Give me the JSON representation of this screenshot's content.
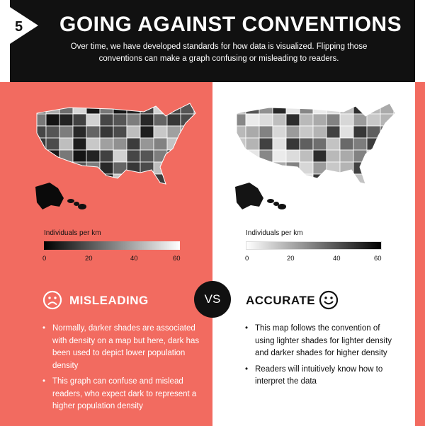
{
  "header": {
    "step_number": "5",
    "title": "GOING AGAINST CONVENTIONS",
    "subtitle": "Over time, we have developed standards for how data is visualized. Flipping those conventions can make a graph confusing or misleading to readers."
  },
  "colors": {
    "header_bg": "#111111",
    "misleading_bg": "#f26b60",
    "accurate_bg": "#ffffff"
  },
  "left_panel": {
    "legend_title": "Individuals per km",
    "ticks": [
      "0",
      "20",
      "40",
      "60"
    ],
    "gradient": "dark-to-light",
    "heading": "MISLEADING",
    "face_icon": "sad-face-icon",
    "bullets": [
      "Normally, darker shades are associated with density on a map but here, dark has been used to depict lower population density",
      "This graph can confuse and mislead readers, who expect dark to represent a higher population density"
    ]
  },
  "right_panel": {
    "legend_title": "Individuals per km",
    "ticks": [
      "0",
      "20",
      "40",
      "60"
    ],
    "gradient": "light-to-dark",
    "heading": "ACCURATE",
    "face_icon": "smile-face-icon",
    "bullets": [
      "This map follows the convention of using lighter shades for lighter density and darker shades for higher density",
      "Readers will intuitively know how to interpret the data"
    ]
  },
  "vs_label": "VS"
}
